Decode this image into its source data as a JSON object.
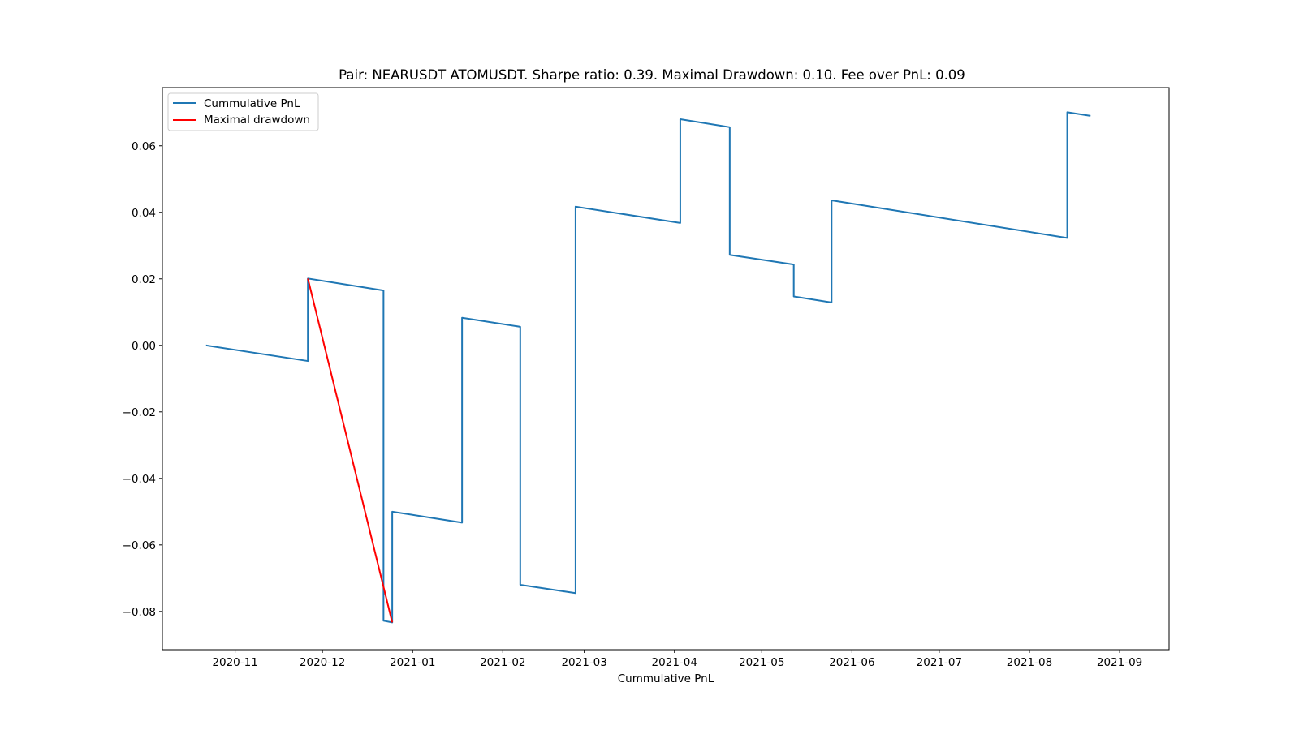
{
  "chart_data": {
    "type": "line",
    "title": "Pair: NEARUSDT ATOMUSDT. Sharpe ratio: 0.39. Maximal Drawdown: 0.10. Fee over PnL: 0.09",
    "xlabel": "Cummulative PnL",
    "ylabel": "",
    "xlim": [
      "2020-10-07",
      "2021-09-18"
    ],
    "ylim": [
      -0.0915,
      0.0775
    ],
    "x_ticks": [
      "2020-11-01",
      "2020-12-01",
      "2021-01-01",
      "2021-02-01",
      "2021-03-01",
      "2021-04-01",
      "2021-05-01",
      "2021-06-01",
      "2021-07-01",
      "2021-08-01",
      "2021-09-01"
    ],
    "x_tick_labels": [
      "2020-11",
      "2020-12",
      "2021-01",
      "2021-02",
      "2021-03",
      "2021-04",
      "2021-05",
      "2021-06",
      "2021-07",
      "2021-08",
      "2021-09"
    ],
    "y_ticks": [
      -0.08,
      -0.06,
      -0.04,
      -0.02,
      0.0,
      0.02,
      0.04,
      0.06
    ],
    "y_tick_labels": [
      "−0.08",
      "−0.06",
      "−0.04",
      "−0.02",
      "0.00",
      "0.02",
      "0.04",
      "0.06"
    ],
    "legend_position": "top-left",
    "grid": false,
    "series": [
      {
        "name": "Cummulative PnL",
        "color": "#1f77b4",
        "points": [
          [
            "2020-10-22",
            0.0
          ],
          [
            "2020-11-26",
            -0.0047
          ],
          [
            "2020-11-26",
            0.0201
          ],
          [
            "2020-12-22",
            0.0165
          ],
          [
            "2020-12-22",
            -0.0828
          ],
          [
            "2020-12-25",
            -0.0833
          ],
          [
            "2020-12-25",
            -0.05
          ],
          [
            "2021-01-18",
            -0.0533
          ],
          [
            "2021-01-18",
            0.0083
          ],
          [
            "2021-02-07",
            0.0056
          ],
          [
            "2021-02-07",
            -0.0302
          ],
          [
            "2021-02-07",
            -0.072
          ],
          [
            "2021-02-26",
            -0.0745
          ],
          [
            "2021-02-26",
            0.0417
          ],
          [
            "2021-04-03",
            0.0368
          ],
          [
            "2021-04-03",
            0.068
          ],
          [
            "2021-04-20",
            0.0656
          ],
          [
            "2021-04-20",
            0.0272
          ],
          [
            "2021-05-12",
            0.0243
          ],
          [
            "2021-05-12",
            0.0147
          ],
          [
            "2021-05-25",
            0.0129
          ],
          [
            "2021-05-25",
            0.0436
          ],
          [
            "2021-08-14",
            0.0323
          ],
          [
            "2021-08-14",
            0.0701
          ],
          [
            "2021-08-22",
            0.069
          ]
        ]
      },
      {
        "name": "Maximal drawdown",
        "color": "#ff0000",
        "points": [
          [
            "2020-11-26",
            0.0201
          ],
          [
            "2020-12-25",
            -0.0833
          ]
        ]
      }
    ]
  }
}
